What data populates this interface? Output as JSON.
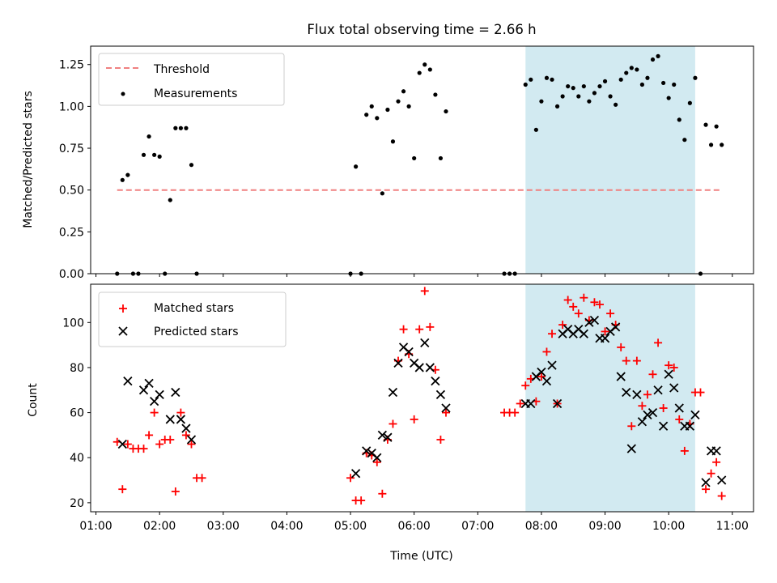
{
  "chart_data": {
    "type": "scatter",
    "title": "Flux total observing time = 2.66 h",
    "xlabel": "Time (UTC)",
    "x_tick_labels": [
      "01:00",
      "02:00",
      "03:00",
      "04:00",
      "05:00",
      "06:00",
      "07:00",
      "08:00",
      "09:00",
      "10:00",
      "11:00"
    ],
    "xlim": [
      "00:55",
      "11:20"
    ],
    "highlight_interval": {
      "start": "07:45",
      "end": "10:25",
      "color": "#add8e6"
    },
    "panels": [
      {
        "ylabel": "Matched/Predicted stars",
        "ylim": [
          0,
          1.36
        ],
        "y_ticks": [
          0.0,
          0.25,
          0.5,
          0.75,
          1.0,
          1.25
        ],
        "y_tick_labels": [
          "0.00",
          "0.25",
          "0.50",
          "0.75",
          "1.00",
          "1.25"
        ],
        "legend": {
          "position": "upper-left",
          "entries": [
            "Threshold",
            "Measurements"
          ]
        },
        "threshold": {
          "name": "Threshold",
          "value": 0.5,
          "x_start": "01:20",
          "x_end": "10:50",
          "color": "#f08080",
          "style": "dashed"
        },
        "series": [
          {
            "name": "Measurements",
            "marker": "dot",
            "color": "#000000",
            "points": [
              [
                "01:20",
                0.0
              ],
              [
                "01:25",
                0.56
              ],
              [
                "01:30",
                0.59
              ],
              [
                "01:35",
                0.0
              ],
              [
                "01:40",
                0.0
              ],
              [
                "01:45",
                0.71
              ],
              [
                "01:50",
                0.82
              ],
              [
                "01:55",
                0.71
              ],
              [
                "02:00",
                0.7
              ],
              [
                "02:05",
                0.0
              ],
              [
                "02:10",
                0.44
              ],
              [
                "02:15",
                0.87
              ],
              [
                "02:20",
                0.87
              ],
              [
                "02:25",
                0.87
              ],
              [
                "02:30",
                0.65
              ],
              [
                "02:35",
                0.0
              ],
              [
                "05:00",
                0.0
              ],
              [
                "05:05",
                0.64
              ],
              [
                "05:10",
                0.0
              ],
              [
                "05:15",
                0.95
              ],
              [
                "05:20",
                1.0
              ],
              [
                "05:25",
                0.93
              ],
              [
                "05:30",
                0.48
              ],
              [
                "05:35",
                0.98
              ],
              [
                "05:40",
                0.79
              ],
              [
                "05:45",
                1.03
              ],
              [
                "05:50",
                1.09
              ],
              [
                "05:55",
                1.0
              ],
              [
                "06:00",
                0.69
              ],
              [
                "06:05",
                1.2
              ],
              [
                "06:10",
                1.25
              ],
              [
                "06:15",
                1.22
              ],
              [
                "06:20",
                1.07
              ],
              [
                "06:25",
                0.69
              ],
              [
                "06:30",
                0.97
              ],
              [
                "07:25",
                0.0
              ],
              [
                "07:30",
                0.0
              ],
              [
                "07:35",
                0.0
              ],
              [
                "07:45",
                1.13
              ],
              [
                "07:50",
                1.16
              ],
              [
                "07:55",
                0.86
              ],
              [
                "08:00",
                1.03
              ],
              [
                "08:05",
                1.17
              ],
              [
                "08:10",
                1.16
              ],
              [
                "08:15",
                1.0
              ],
              [
                "08:20",
                1.06
              ],
              [
                "08:25",
                1.12
              ],
              [
                "08:30",
                1.11
              ],
              [
                "08:35",
                1.06
              ],
              [
                "08:40",
                1.12
              ],
              [
                "08:45",
                1.03
              ],
              [
                "08:50",
                1.08
              ],
              [
                "08:55",
                1.12
              ],
              [
                "09:00",
                1.15
              ],
              [
                "09:05",
                1.06
              ],
              [
                "09:10",
                1.01
              ],
              [
                "09:15",
                1.16
              ],
              [
                "09:20",
                1.2
              ],
              [
                "09:25",
                1.23
              ],
              [
                "09:30",
                1.22
              ],
              [
                "09:35",
                1.13
              ],
              [
                "09:40",
                1.17
              ],
              [
                "09:45",
                1.28
              ],
              [
                "09:50",
                1.3
              ],
              [
                "09:55",
                1.14
              ],
              [
                "10:00",
                1.05
              ],
              [
                "10:05",
                1.13
              ],
              [
                "10:10",
                0.92
              ],
              [
                "10:15",
                0.8
              ],
              [
                "10:20",
                1.02
              ],
              [
                "10:25",
                1.17
              ],
              [
                "10:30",
                0.0
              ],
              [
                "10:35",
                0.89
              ],
              [
                "10:40",
                0.77
              ],
              [
                "10:45",
                0.88
              ],
              [
                "10:50",
                0.77
              ]
            ]
          }
        ]
      },
      {
        "ylabel": "Count",
        "ylim": [
          16,
          117
        ],
        "y_ticks": [
          20,
          40,
          60,
          80,
          100
        ],
        "y_tick_labels": [
          "20",
          "40",
          "60",
          "80",
          "100"
        ],
        "legend": {
          "position": "upper-left",
          "entries": [
            "Matched stars",
            "Predicted stars"
          ]
        },
        "series": [
          {
            "name": "Matched stars",
            "marker": "plus",
            "color": "#ff0000",
            "points": [
              [
                "01:20",
                47
              ],
              [
                "01:25",
                26
              ],
              [
                "01:30",
                46
              ],
              [
                "01:35",
                44
              ],
              [
                "01:40",
                44
              ],
              [
                "01:45",
                44
              ],
              [
                "01:50",
                50
              ],
              [
                "01:55",
                60
              ],
              [
                "02:00",
                46
              ],
              [
                "02:05",
                48
              ],
              [
                "02:10",
                48
              ],
              [
                "02:15",
                25
              ],
              [
                "02:20",
                60
              ],
              [
                "02:25",
                50
              ],
              [
                "02:30",
                46
              ],
              [
                "02:35",
                31
              ],
              [
                "02:40",
                31
              ],
              [
                "05:00",
                31
              ],
              [
                "05:05",
                21
              ],
              [
                "05:10",
                21
              ],
              [
                "05:15",
                42
              ],
              [
                "05:20",
                41
              ],
              [
                "05:25",
                38
              ],
              [
                "05:30",
                24
              ],
              [
                "05:35",
                48
              ],
              [
                "05:40",
                55
              ],
              [
                "05:45",
                83
              ],
              [
                "05:50",
                97
              ],
              [
                "05:55",
                86
              ],
              [
                "06:00",
                57
              ],
              [
                "06:05",
                97
              ],
              [
                "06:10",
                114
              ],
              [
                "06:15",
                98
              ],
              [
                "06:20",
                79
              ],
              [
                "06:25",
                48
              ],
              [
                "06:30",
                60
              ],
              [
                "07:25",
                60
              ],
              [
                "07:30",
                60
              ],
              [
                "07:35",
                60
              ],
              [
                "07:40",
                64
              ],
              [
                "07:45",
                72
              ],
              [
                "07:50",
                75
              ],
              [
                "07:55",
                65
              ],
              [
                "08:00",
                76
              ],
              [
                "08:05",
                87
              ],
              [
                "08:10",
                95
              ],
              [
                "08:15",
                64
              ],
              [
                "08:20",
                99
              ],
              [
                "08:25",
                110
              ],
              [
                "08:30",
                107
              ],
              [
                "08:35",
                104
              ],
              [
                "08:40",
                111
              ],
              [
                "08:45",
                101
              ],
              [
                "08:50",
                109
              ],
              [
                "08:55",
                108
              ],
              [
                "09:00",
                96
              ],
              [
                "09:05",
                104
              ],
              [
                "09:10",
                99
              ],
              [
                "09:15",
                89
              ],
              [
                "09:20",
                83
              ],
              [
                "09:25",
                54
              ],
              [
                "09:30",
                83
              ],
              [
                "09:35",
                63
              ],
              [
                "09:40",
                68
              ],
              [
                "09:45",
                77
              ],
              [
                "09:50",
                91
              ],
              [
                "09:55",
                62
              ],
              [
                "10:00",
                81
              ],
              [
                "10:05",
                80
              ],
              [
                "10:10",
                57
              ],
              [
                "10:15",
                43
              ],
              [
                "10:20",
                55
              ],
              [
                "10:25",
                69
              ],
              [
                "10:30",
                69
              ],
              [
                "10:35",
                26
              ],
              [
                "10:40",
                33
              ],
              [
                "10:45",
                38
              ],
              [
                "10:50",
                23
              ]
            ]
          },
          {
            "name": "Predicted stars",
            "marker": "x",
            "color": "#000000",
            "points": [
              [
                "01:25",
                46
              ],
              [
                "01:30",
                74
              ],
              [
                "01:45",
                70
              ],
              [
                "01:50",
                73
              ],
              [
                "01:55",
                65
              ],
              [
                "02:00",
                68
              ],
              [
                "02:10",
                57
              ],
              [
                "02:15",
                69
              ],
              [
                "02:20",
                57
              ],
              [
                "02:25",
                53
              ],
              [
                "02:30",
                48
              ],
              [
                "05:05",
                33
              ],
              [
                "05:15",
                43
              ],
              [
                "05:20",
                42
              ],
              [
                "05:25",
                40
              ],
              [
                "05:30",
                50
              ],
              [
                "05:35",
                49
              ],
              [
                "05:40",
                69
              ],
              [
                "05:45",
                82
              ],
              [
                "05:50",
                89
              ],
              [
                "05:55",
                87
              ],
              [
                "06:00",
                82
              ],
              [
                "06:05",
                80
              ],
              [
                "06:10",
                91
              ],
              [
                "06:15",
                80
              ],
              [
                "06:20",
                74
              ],
              [
                "06:25",
                68
              ],
              [
                "06:30",
                62
              ],
              [
                "07:45",
                64
              ],
              [
                "07:50",
                64
              ],
              [
                "07:55",
                76
              ],
              [
                "08:00",
                78
              ],
              [
                "08:05",
                74
              ],
              [
                "08:10",
                81
              ],
              [
                "08:15",
                64
              ],
              [
                "08:20",
                95
              ],
              [
                "08:25",
                97
              ],
              [
                "08:30",
                95
              ],
              [
                "08:35",
                97
              ],
              [
                "08:40",
                95
              ],
              [
                "08:45",
                100
              ],
              [
                "08:50",
                101
              ],
              [
                "08:55",
                93
              ],
              [
                "09:00",
                93
              ],
              [
                "09:05",
                96
              ],
              [
                "09:10",
                98
              ],
              [
                "09:15",
                76
              ],
              [
                "09:20",
                69
              ],
              [
                "09:25",
                44
              ],
              [
                "09:30",
                68
              ],
              [
                "09:35",
                56
              ],
              [
                "09:40",
                59
              ],
              [
                "09:45",
                60
              ],
              [
                "09:50",
                70
              ],
              [
                "09:55",
                54
              ],
              [
                "10:00",
                77
              ],
              [
                "10:05",
                71
              ],
              [
                "10:10",
                62
              ],
              [
                "10:15",
                54
              ],
              [
                "10:20",
                54
              ],
              [
                "10:25",
                59
              ],
              [
                "10:35",
                29
              ],
              [
                "10:40",
                43
              ],
              [
                "10:45",
                43
              ],
              [
                "10:50",
                30
              ]
            ]
          }
        ]
      }
    ]
  }
}
